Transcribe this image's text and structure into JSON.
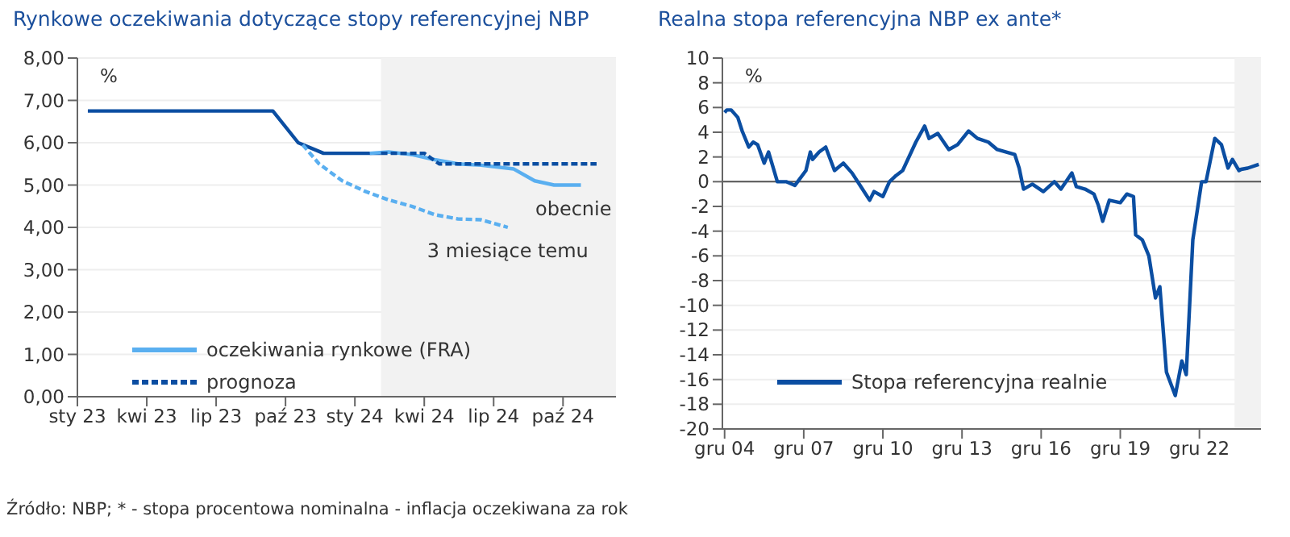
{
  "chart_data": [
    {
      "type": "line",
      "title": "Rynkowe oczekiwania dotyczące stopy referencyjnej NBP",
      "ylabel": "%",
      "xlim": [
        "2023-01-01",
        "2024-12-10"
      ],
      "xticks": [
        {
          "value": "2023-01",
          "label": "sty 23"
        },
        {
          "value": "2023-04",
          "label": "kwi 23"
        },
        {
          "value": "2023-07",
          "label": "lip 23"
        },
        {
          "value": "2023-10",
          "label": "paź 23"
        },
        {
          "value": "2024-01",
          "label": "sty 24"
        },
        {
          "value": "2024-04",
          "label": "kwi 24"
        },
        {
          "value": "2024-07",
          "label": "lip 24"
        },
        {
          "value": "2024-10",
          "label": "paź 24"
        }
      ],
      "ylim": [
        0,
        8
      ],
      "yticks": [
        {
          "value": 0,
          "label": "0,00"
        },
        {
          "value": 1,
          "label": "1,00"
        },
        {
          "value": 2,
          "label": "2,00"
        },
        {
          "value": 3,
          "label": "3,00"
        },
        {
          "value": 4,
          "label": "4,00"
        },
        {
          "value": 5,
          "label": "5,00"
        },
        {
          "value": 6,
          "label": "6,00"
        },
        {
          "value": 7,
          "label": "7,00"
        },
        {
          "value": 8,
          "label": "8,00"
        }
      ],
      "grid": "y",
      "legend": "bottom left",
      "bands": [
        {
          "axis": "x",
          "from": "2024-02-05",
          "to": "2024-12-10",
          "color": "#f2f2f2"
        }
      ],
      "series": [
        {
          "color": "#0b4ea2",
          "line_style": "solid",
          "x": [
            "2023-01-15",
            "2023-09-15",
            "2023-10-18",
            "2023-11-21",
            "2024-02-05"
          ],
          "values": [
            6.75,
            6.75,
            6.0,
            5.75,
            5.75
          ]
        },
        {
          "color": "#5aaff0",
          "line_style": "dashed",
          "x": [
            "2023-10-24",
            "2023-11-15",
            "2023-12-15",
            "2024-01-15",
            "2024-02-15",
            "2024-03-15",
            "2024-04-15",
            "2024-05-15",
            "2024-06-15",
            "2024-07-20"
          ],
          "values": [
            5.95,
            5.5,
            5.1,
            4.85,
            4.65,
            4.5,
            4.3,
            4.2,
            4.18,
            4.0
          ]
        },
        {
          "name": "oczekiwania rynkowe (FRA)",
          "color": "#5aaff0",
          "line_style": "solid",
          "x": [
            "2024-01-21",
            "2024-02-15",
            "2024-03-15",
            "2024-04-15",
            "2024-05-15",
            "2024-06-15",
            "2024-07-28",
            "2024-08-25",
            "2024-09-20",
            "2024-10-25"
          ],
          "values": [
            5.75,
            5.78,
            5.72,
            5.6,
            5.5,
            5.47,
            5.38,
            5.1,
            5.0,
            5.0
          ]
        },
        {
          "name": "prognoza",
          "color": "#0b4ea2",
          "line_style": "dashed",
          "x": [
            "2024-02-05",
            "2024-04-01",
            "2024-04-21",
            "2024-11-15"
          ],
          "values": [
            5.75,
            5.75,
            5.5,
            5.5
          ]
        }
      ],
      "annotations": [
        {
          "text": "obecnie",
          "x": "2024-10-15",
          "y": 5.0
        },
        {
          "text": "3 miesiące temu",
          "x": "2024-07-20",
          "y": 4.0
        },
        "Źródło: NBP; * - stopa procentowa nominalna - inflacja oczekiwana za rok"
      ]
    },
    {
      "type": "line",
      "title": "Realna stopa referencyjna NBP ex ante*",
      "ylabel": "%",
      "xlim": [
        "2004-11",
        "2025-04"
      ],
      "xticks": [
        {
          "value": "2004-12",
          "label": "gru 04"
        },
        {
          "value": "2007-12",
          "label": "gru 07"
        },
        {
          "value": "2010-12",
          "label": "gru 10"
        },
        {
          "value": "2013-12",
          "label": "gru 13"
        },
        {
          "value": "2016-12",
          "label": "gru 16"
        },
        {
          "value": "2019-12",
          "label": "gru 19"
        },
        {
          "value": "2022-12",
          "label": "gru 22"
        }
      ],
      "ylim": [
        -20,
        10
      ],
      "yticks": [
        -20,
        -18,
        -16,
        -14,
        -12,
        -10,
        -8,
        -6,
        -4,
        -2,
        0,
        2,
        4,
        6,
        8,
        10
      ],
      "grid": "y",
      "legend": "bottom left",
      "bands": [
        {
          "axis": "x",
          "from": "2024-04",
          "to": "2025-04",
          "color": "#f2f2f2"
        }
      ],
      "ref_lines": [
        {
          "axis": "y",
          "value": 0,
          "color": "#555555"
        }
      ],
      "series": [
        {
          "name": "Stopa referencyjna realnie",
          "color": "#0b4ea2",
          "line_style": "solid",
          "x": [
            "2004-12",
            "2005-01",
            "2005-03",
            "2005-06",
            "2005-08",
            "2005-11",
            "2006-01",
            "2006-03",
            "2006-06",
            "2006-08",
            "2006-12",
            "2007-04",
            "2007-08",
            "2008-01",
            "2008-03",
            "2008-04",
            "2008-07",
            "2008-10",
            "2009-02",
            "2009-06",
            "2009-10",
            "2010-02",
            "2010-06",
            "2010-08",
            "2010-12",
            "2011-03",
            "2011-06",
            "2011-09",
            "2012-03",
            "2012-07",
            "2012-09",
            "2013-01",
            "2013-06",
            "2013-10",
            "2014-03",
            "2014-07",
            "2014-12",
            "2015-04",
            "2015-12",
            "2016-02",
            "2016-04",
            "2016-08",
            "2017-01",
            "2017-06",
            "2017-09",
            "2018-02",
            "2018-04",
            "2018-08",
            "2018-12",
            "2019-02",
            "2019-04",
            "2019-07",
            "2019-12",
            "2020-03",
            "2020-06",
            "2020-07",
            "2020-10",
            "2021-01",
            "2021-04",
            "2021-06",
            "2021-09",
            "2022-01",
            "2022-04",
            "2022-06",
            "2022-09",
            "2023-01",
            "2023-03",
            "2023-07",
            "2023-10",
            "2024-01",
            "2024-03",
            "2024-06",
            "2024-07",
            "2024-10",
            "2025-03"
          ],
          "values": [
            5.6,
            5.8,
            5.8,
            5.2,
            4.1,
            2.8,
            3.2,
            3.0,
            1.5,
            2.4,
            0,
            0,
            -0.3,
            0.9,
            2.4,
            1.8,
            2.4,
            2.8,
            0.9,
            1.5,
            0.7,
            -0.4,
            -1.5,
            -0.8,
            -1.2,
            0,
            0.5,
            0.9,
            3.2,
            4.5,
            3.5,
            3.9,
            2.6,
            3.0,
            4.1,
            3.5,
            3.2,
            2.6,
            2.2,
            1.1,
            -0.6,
            -0.2,
            -0.8,
            0,
            -0.6,
            0.7,
            -0.4,
            -0.6,
            -1.0,
            -1.9,
            -3.2,
            -1.5,
            -1.7,
            -1.0,
            -1.2,
            -4.3,
            -4.7,
            -6.0,
            -9.4,
            -8.5,
            -15.4,
            -17.3,
            -14.5,
            -15.6,
            -4.7,
            0,
            0,
            3.5,
            3.0,
            1.1,
            1.8,
            0.9,
            1.0,
            1.1,
            1.4
          ]
        }
      ]
    }
  ]
}
